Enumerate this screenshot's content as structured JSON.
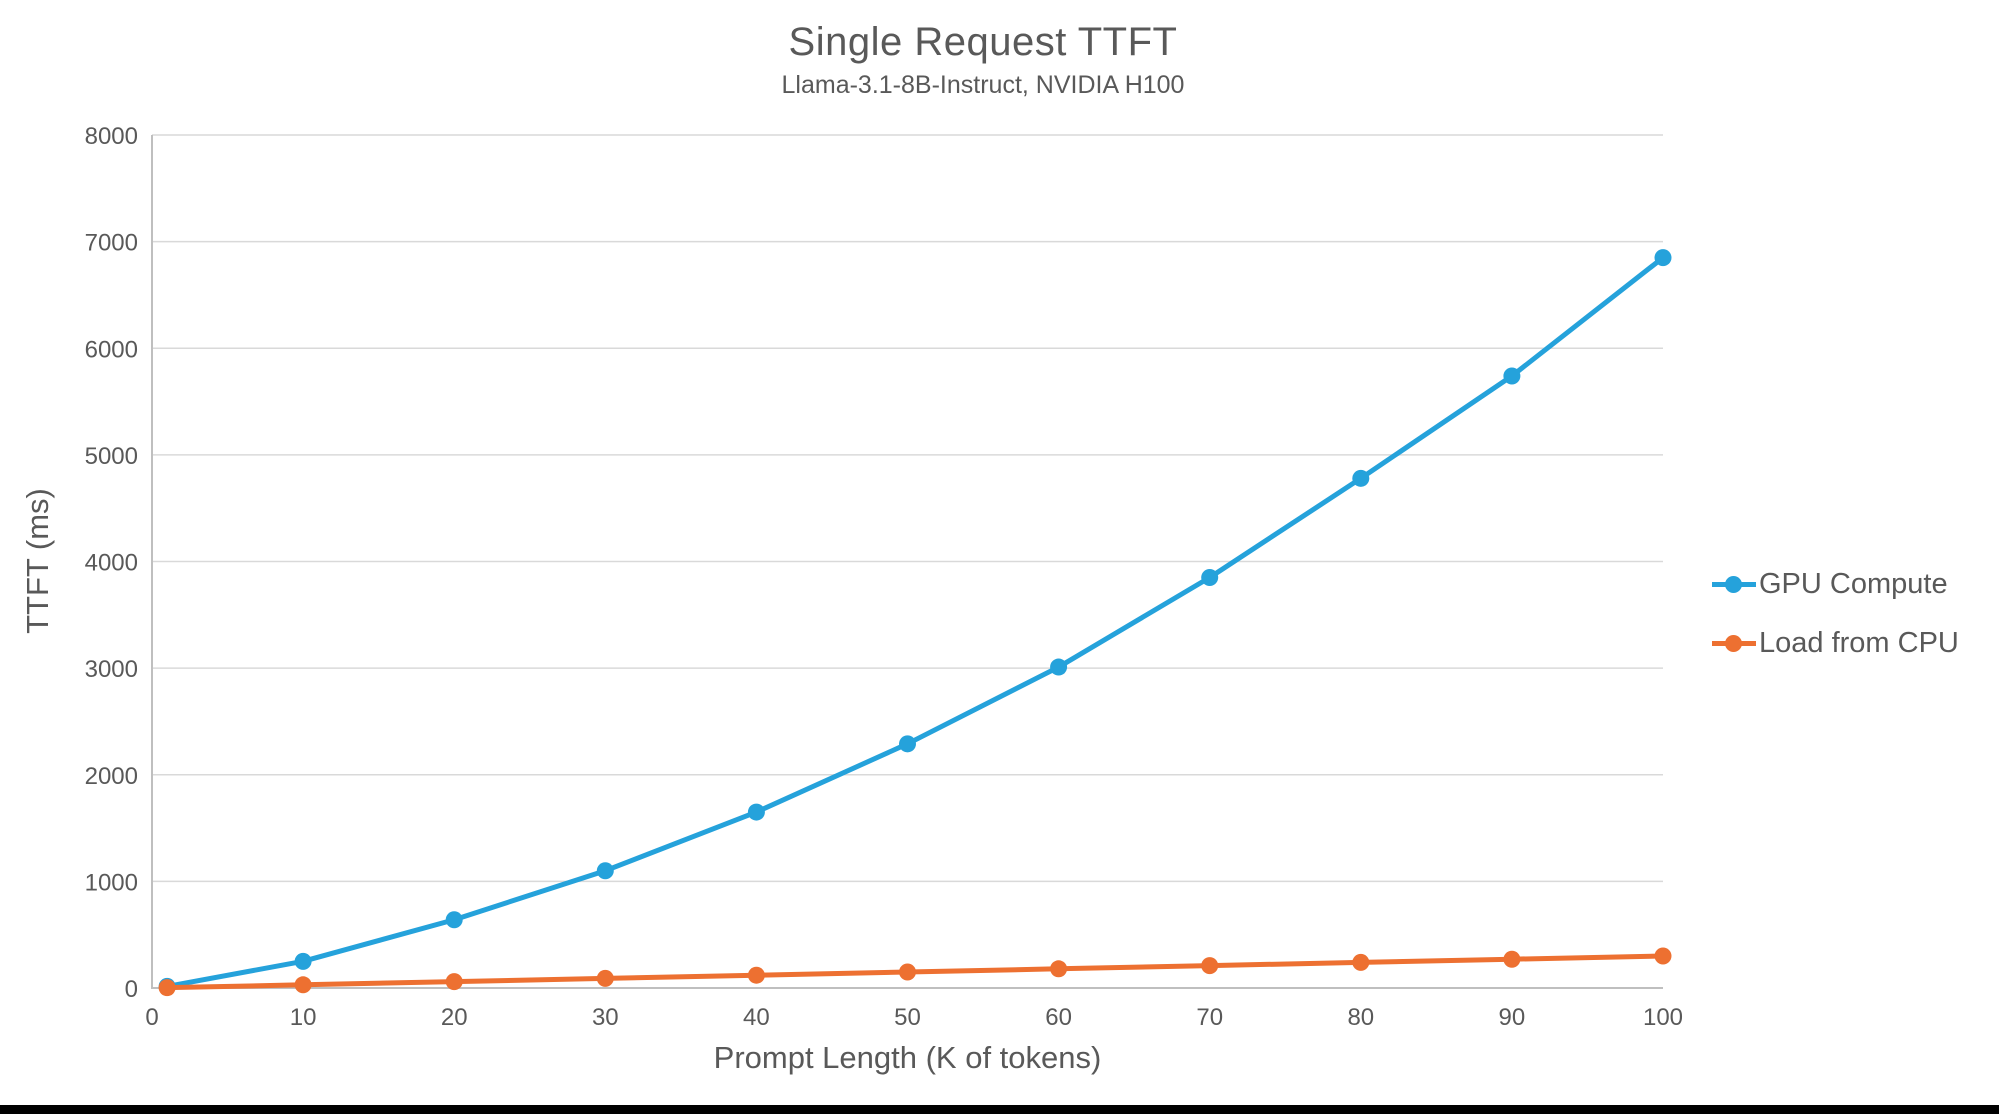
{
  "page": {
    "background": "#ffffff",
    "bottom_bar_color": "#000000",
    "text_color": "#595959",
    "gridline_color": "#d9d9d9",
    "axis_color": "#bfbfbf"
  },
  "chart_data": {
    "type": "line",
    "title": "Single Request TTFT",
    "subtitle": "Llama-3.1-8B-Instruct, NVIDIA H100",
    "xlabel": "Prompt Length (K of tokens)",
    "ylabel": "TTFT (ms)",
    "xlim": [
      0,
      100
    ],
    "ylim": [
      0,
      8000
    ],
    "x_ticks": [
      0,
      10,
      20,
      30,
      40,
      50,
      60,
      70,
      80,
      90,
      100
    ],
    "y_ticks": [
      0,
      1000,
      2000,
      3000,
      4000,
      5000,
      6000,
      7000,
      8000
    ],
    "grid": "horizontal",
    "legend_position": "right",
    "markers": true,
    "x": [
      1,
      10,
      20,
      30,
      40,
      50,
      60,
      70,
      80,
      90,
      100
    ],
    "series": [
      {
        "name": "GPU Compute",
        "color": "#25a2db",
        "values": [
          15,
          250,
          640,
          1100,
          1650,
          2290,
          3010,
          3850,
          4780,
          5740,
          6850
        ]
      },
      {
        "name": "Load from CPU",
        "color": "#ed7031",
        "values": [
          3,
          30,
          60,
          90,
          120,
          150,
          180,
          210,
          240,
          270,
          300
        ]
      }
    ]
  }
}
